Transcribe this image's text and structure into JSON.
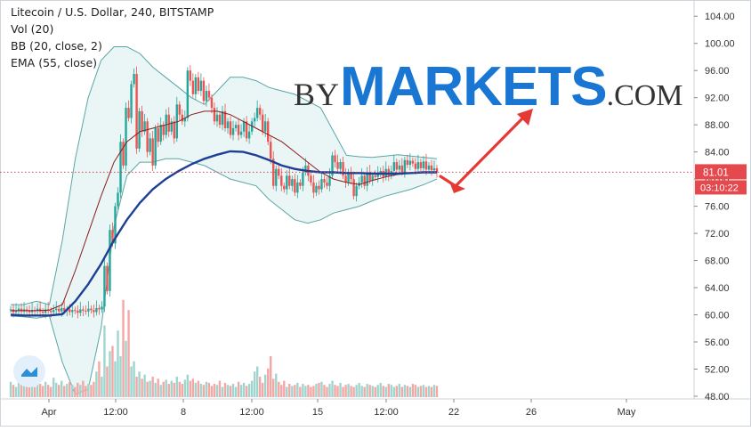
{
  "legend": {
    "symbol": "Litecoin / U.S. Dollar, 240, BITSTAMP",
    "vol": "Vol (20)",
    "bb": "BB (20, close, 2)",
    "ema": "EMA (55, close)"
  },
  "watermark": {
    "by": "BY",
    "markets": "MARKETS",
    "com": ".COM"
  },
  "price_badge": {
    "price": "81.01",
    "countdown": "03:10:22"
  },
  "icons": {
    "tradingview": "tradingview-logo-icon",
    "arrow": "forecast-arrow-icon"
  },
  "colors": {
    "up": "#26a69a",
    "down": "#ef5350",
    "bb_fill": "#eaf5f6",
    "bb_band": "#5aa6a6",
    "bb_basis": "#8b1c1c",
    "ema": "#1d3f94",
    "arrow": "#e53935",
    "watermark_blue": "#1976d2"
  },
  "chart_data": {
    "type": "candlestick",
    "title": "Litecoin / U.S. Dollar, 240, BITSTAMP",
    "y_axis": {
      "ticks": [
        "104.00",
        "100.00",
        "96.00",
        "92.00",
        "88.00",
        "84.00",
        "80.00",
        "76.00",
        "72.00",
        "68.00",
        "64.00",
        "60.00",
        "56.00",
        "52.00",
        "48.00"
      ],
      "ylim": [
        47.6,
        106.0
      ],
      "current_price": 81.01
    },
    "x_axis": {
      "tick_labels": [
        "Apr",
        "12:00",
        "8",
        "12:00",
        "15",
        "12:00",
        "22",
        "26",
        "May"
      ]
    },
    "candles_close": [
      60.8,
      60.4,
      60.6,
      60.9,
      60.5,
      60.8,
      60.6,
      60.4,
      60.7,
      60.6,
      60.9,
      60.5,
      60.3,
      60.8,
      60.6,
      60.4,
      60.7,
      60.9,
      60.5,
      61.0,
      60.6,
      60.8,
      60.4,
      60.7,
      60.6,
      60.3,
      60.8,
      60.6,
      60.5,
      60.9,
      60.7,
      60.4,
      61.0,
      60.8,
      61.2,
      67.2,
      63.5,
      72.5,
      70.5,
      76.0,
      78.0,
      85.5,
      82.0,
      90.5,
      89.0,
      94.0,
      95.5,
      84.5,
      90.0,
      87.0,
      88.5,
      84.0,
      86.0,
      82.0,
      87.5,
      85.5,
      88.0,
      86.5,
      89.5,
      87.0,
      88.5,
      86.0,
      91.0,
      89.5,
      88.5,
      89.0,
      96.0,
      94.5,
      92.5,
      95.0,
      93.0,
      94.5,
      91.5,
      93.0,
      92.0,
      90.5,
      88.5,
      89.5,
      88.0,
      90.0,
      87.5,
      88.5,
      86.5,
      87.5,
      88.0,
      86.5,
      87.0,
      88.5,
      86.0,
      87.0,
      88.5,
      89.0,
      90.5,
      89.5,
      87.0,
      88.5,
      85.5,
      83.0,
      79.0,
      81.5,
      80.5,
      79.0,
      78.5,
      80.5,
      79.0,
      80.0,
      78.0,
      79.5,
      79.0,
      81.0,
      82.0,
      80.5,
      79.5,
      78.0,
      79.0,
      78.5,
      80.0,
      79.5,
      79.0,
      80.5,
      83.5,
      82.5,
      81.5,
      82.5,
      80.5,
      79.5,
      81.0,
      80.0,
      77.5,
      79.0,
      79.5,
      80.5,
      79.0,
      81.0,
      79.8,
      80.5,
      80.3,
      80.8,
      81.2,
      80.3,
      81.5,
      80.5,
      81.2,
      82.5,
      81.4,
      82.0,
      81.0,
      82.8,
      82.1,
      82.7,
      82.3,
      81.5,
      82.5,
      81.6,
      82.6,
      81.4,
      82.0,
      81.3,
      81.6,
      81.01
    ],
    "series": [
      {
        "name": "BB upper",
        "values": [
          61.5,
          61.5,
          62.0,
          61.5,
          71.0,
          83.0,
          92.0,
          97.5,
          99.5,
          99.5,
          98.5,
          96.5,
          95.0,
          93.5,
          92.0,
          91.0,
          93.0,
          95.0,
          95.0,
          94.5,
          93.5,
          93.0,
          92.5,
          91.5,
          90.5,
          87.0,
          83.5,
          83.3,
          83.2,
          83.4,
          83.6,
          83.4,
          83.2,
          83.0
        ]
      },
      {
        "name": "BB lower",
        "values": [
          59.8,
          59.7,
          59.5,
          59.8,
          53.0,
          48.3,
          49.0,
          58.0,
          73.0,
          80.5,
          82.5,
          82.5,
          83.0,
          83.0,
          82.5,
          82.0,
          81.0,
          80.0,
          79.5,
          79.0,
          77.0,
          75.5,
          74.0,
          73.5,
          74.0,
          75.0,
          75.5,
          76.0,
          76.8,
          77.5,
          78.0,
          78.5,
          79.2,
          80.0
        ]
      },
      {
        "name": "BB basis",
        "values": [
          60.6,
          60.6,
          60.6,
          60.7,
          61.5,
          66.5,
          72.0,
          77.5,
          82.5,
          85.5,
          87.0,
          87.5,
          88.0,
          88.5,
          89.5,
          90.0,
          90.0,
          89.5,
          88.5,
          87.5,
          86.5,
          85.5,
          84.0,
          82.5,
          81.0,
          80.0,
          79.5,
          79.2,
          79.8,
          80.3,
          80.7,
          80.9,
          81.0,
          81.0
        ]
      },
      {
        "name": "EMA 55",
        "values": [
          60.0,
          59.9,
          59.9,
          59.9,
          60.1,
          62.0,
          64.5,
          67.5,
          71.0,
          74.0,
          76.5,
          78.5,
          80.0,
          81.2,
          82.2,
          83.0,
          83.6,
          84.1,
          84.0,
          83.5,
          82.8,
          82.0,
          81.5,
          81.2,
          81.0,
          81.0,
          80.9,
          80.9,
          80.8,
          80.8,
          80.8,
          80.9,
          81.0,
          81.0
        ]
      }
    ],
    "volume": [
      1.5,
      1.2,
      1.0,
      1.8,
      1.3,
      1.1,
      1.6,
      1.2,
      1.4,
      1.0,
      1.7,
      1.3,
      1.1,
      1.5,
      1.2,
      1.0,
      1.9,
      1.4,
      1.2,
      1.6,
      1.1,
      1.3,
      1.5,
      1.2,
      1.0,
      1.4,
      1.2,
      1.6,
      1.1,
      1.3,
      1.2,
      1.5,
      2.5,
      3.5,
      2.0,
      7.0,
      3.0,
      4.5,
      5.0,
      3.5,
      6.5,
      4.0,
      9.5,
      5.5,
      8.5,
      3.0,
      3.5,
      2.0,
      2.5,
      1.8,
      2.2,
      1.5,
      1.6,
      2.0,
      1.4,
      1.8,
      1.2,
      1.5,
      1.7,
      1.3,
      1.6,
      1.4,
      2.0,
      1.5,
      1.3,
      1.7,
      2.2,
      1.6,
      1.8,
      1.4,
      1.6,
      1.3,
      1.2,
      1.5,
      1.4,
      1.1,
      1.3,
      1.2,
      1.6,
      1.0,
      1.4,
      1.2,
      1.1,
      1.3,
      1.0,
      1.5,
      1.2,
      1.4,
      1.1,
      1.3,
      1.6,
      2.5,
      3.0,
      2.0,
      1.4,
      2.2,
      2.8,
      4.0,
      1.8,
      2.3,
      1.5,
      1.2,
      1.6,
      1.0,
      1.3,
      1.1,
      1.2,
      1.4,
      1.0,
      1.3,
      1.1,
      1.2,
      1.0,
      1.1,
      1.3,
      1.4,
      1.5,
      1.2,
      1.0,
      1.3,
      1.6,
      1.2,
      1.1,
      1.4,
      1.0,
      1.2,
      1.3,
      1.1,
      1.0,
      1.2,
      1.4,
      1.1,
      1.0,
      1.3,
      1.2,
      1.1,
      1.0,
      1.2,
      1.4,
      1.1,
      1.0,
      1.3,
      1.2,
      1.0,
      1.1,
      1.3,
      1.0,
      1.2,
      1.1,
      1.0,
      1.3,
      1.2,
      1.0,
      1.1,
      1.2,
      1.0,
      1.1,
      1.0,
      1.2,
      1.1
    ]
  }
}
